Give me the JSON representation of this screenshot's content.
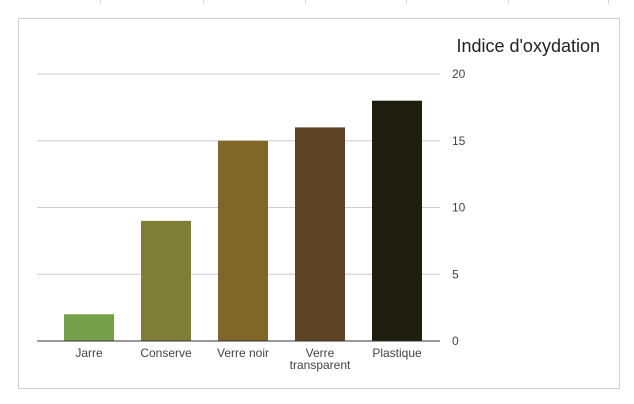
{
  "chart_data": {
    "type": "bar",
    "title": "Indice d'oxydation",
    "categories": [
      "Jarre",
      "Conserve",
      "Verre noir",
      "Verre transparent",
      "Plastique"
    ],
    "category_label_lines": [
      [
        "Jarre"
      ],
      [
        "Conserve"
      ],
      [
        "Verre noir"
      ],
      [
        "Verre",
        "transparent"
      ],
      [
        "Plastique"
      ]
    ],
    "values": [
      2,
      9,
      15,
      16,
      18
    ],
    "colors": [
      "#76a04a",
      "#7e7e36",
      "#806728",
      "#5c4424",
      "#1f1d0e"
    ],
    "ylim": [
      0,
      20
    ],
    "yticks": [
      "0",
      "5",
      "10",
      "15",
      "20"
    ],
    "y_axis_side": "right",
    "grid": true,
    "legend": "none",
    "xlabel": "",
    "ylabel": ""
  }
}
